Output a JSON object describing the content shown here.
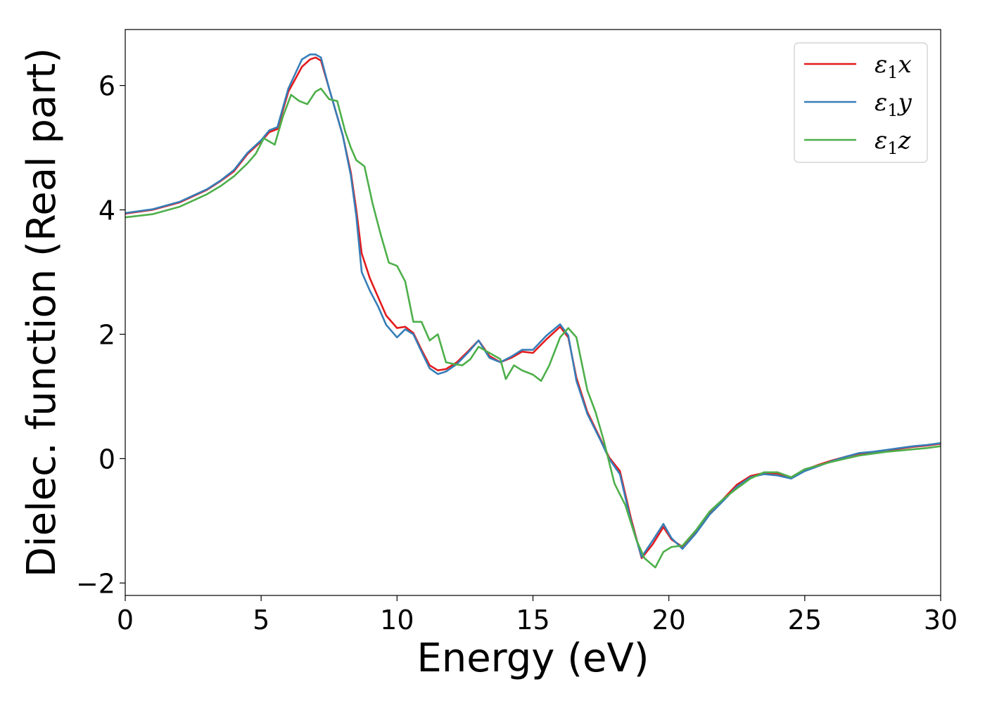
{
  "chart_data": {
    "type": "line",
    "title": "",
    "xlabel": "Energy (eV)",
    "ylabel": "Dielec. function (Real part)",
    "xlim": [
      0,
      30
    ],
    "ylim": [
      -2.2,
      6.9
    ],
    "xticks": [
      0,
      5,
      10,
      15,
      20,
      25,
      30
    ],
    "xtick_labels": [
      "0",
      "5",
      "10",
      "15",
      "20",
      "25",
      "30"
    ],
    "yticks": [
      -2,
      0,
      2,
      4,
      6
    ],
    "ytick_labels": [
      "−2",
      "0",
      "2",
      "4",
      "6"
    ],
    "grid": false,
    "legend_position": "top-right",
    "series": [
      {
        "name": "ε1x",
        "legend_base": "ε",
        "legend_sub": "1",
        "legend_tail": "x",
        "color": "#e41a1c",
        "x": [
          0,
          1,
          2,
          3,
          3.5,
          4,
          4.5,
          5,
          5.3,
          5.6,
          6,
          6.5,
          6.8,
          7.0,
          7.2,
          7.5,
          8.0,
          8.3,
          8.5,
          8.7,
          9.0,
          9.3,
          9.6,
          10.0,
          10.3,
          10.6,
          10.9,
          11.2,
          11.5,
          11.8,
          12.2,
          12.6,
          13.0,
          13.4,
          13.8,
          14.2,
          14.6,
          15.0,
          15.5,
          16.0,
          16.3,
          16.6,
          17.0,
          17.5,
          17.8,
          18.2,
          18.6,
          19.0,
          19.4,
          19.8,
          20.1,
          20.5,
          21.0,
          21.5,
          22.0,
          22.5,
          23.0,
          23.5,
          24.0,
          24.5,
          25.0,
          25.5,
          26.0,
          26.5,
          27.0,
          27.5,
          28.0,
          28.5,
          29.0,
          29.5,
          30.0
        ],
        "y": [
          3.94,
          4.0,
          4.12,
          4.32,
          4.46,
          4.62,
          4.9,
          5.1,
          5.25,
          5.3,
          5.9,
          6.3,
          6.42,
          6.45,
          6.4,
          5.95,
          5.2,
          4.6,
          4.0,
          3.3,
          2.9,
          2.6,
          2.3,
          2.1,
          2.12,
          2.02,
          1.75,
          1.5,
          1.42,
          1.44,
          1.55,
          1.72,
          1.9,
          1.65,
          1.55,
          1.62,
          1.72,
          1.7,
          1.92,
          2.12,
          1.95,
          1.3,
          0.75,
          0.3,
          0.02,
          -0.2,
          -0.95,
          -1.6,
          -1.38,
          -1.1,
          -1.3,
          -1.42,
          -1.18,
          -0.88,
          -0.65,
          -0.42,
          -0.28,
          -0.23,
          -0.24,
          -0.3,
          -0.18,
          -0.1,
          -0.03,
          0.03,
          0.08,
          0.1,
          0.12,
          0.16,
          0.19,
          0.21,
          0.24
        ]
      },
      {
        "name": "ε1y",
        "legend_base": "ε",
        "legend_sub": "1",
        "legend_tail": "y",
        "color": "#377eb8",
        "x": [
          0,
          1,
          2,
          3,
          3.5,
          4,
          4.5,
          5,
          5.3,
          5.6,
          6,
          6.5,
          6.8,
          7.0,
          7.2,
          7.5,
          8.0,
          8.3,
          8.5,
          8.7,
          9.0,
          9.3,
          9.6,
          10.0,
          10.3,
          10.6,
          10.9,
          11.2,
          11.5,
          11.8,
          12.2,
          12.6,
          13.0,
          13.4,
          13.8,
          14.2,
          14.6,
          15.0,
          15.5,
          16.0,
          16.3,
          16.6,
          17.0,
          17.5,
          17.8,
          18.2,
          18.6,
          19.0,
          19.4,
          19.8,
          20.1,
          20.5,
          21.0,
          21.5,
          22.0,
          22.5,
          23.0,
          23.5,
          24.0,
          24.5,
          25.0,
          25.5,
          26.0,
          26.5,
          27.0,
          27.5,
          28.0,
          28.5,
          29.0,
          29.5,
          30.0
        ],
        "y": [
          3.95,
          4.01,
          4.13,
          4.33,
          4.47,
          4.64,
          4.92,
          5.12,
          5.28,
          5.33,
          5.95,
          6.42,
          6.5,
          6.5,
          6.45,
          5.95,
          5.2,
          4.55,
          3.9,
          3.0,
          2.7,
          2.45,
          2.15,
          1.95,
          2.08,
          2.0,
          1.72,
          1.45,
          1.36,
          1.4,
          1.52,
          1.7,
          1.9,
          1.62,
          1.55,
          1.64,
          1.75,
          1.75,
          1.98,
          2.16,
          1.98,
          1.25,
          0.72,
          0.28,
          0.0,
          -0.25,
          -1.0,
          -1.58,
          -1.32,
          -1.05,
          -1.28,
          -1.45,
          -1.2,
          -0.9,
          -0.68,
          -0.45,
          -0.3,
          -0.25,
          -0.27,
          -0.32,
          -0.2,
          -0.12,
          -0.04,
          0.03,
          0.09,
          0.11,
          0.14,
          0.17,
          0.2,
          0.22,
          0.25
        ]
      },
      {
        "name": "ε1z",
        "legend_base": "ε",
        "legend_sub": "1",
        "legend_tail": "z",
        "color": "#4daf4a",
        "x": [
          0,
          1,
          2,
          3,
          3.5,
          4,
          4.5,
          4.8,
          5.1,
          5.5,
          5.8,
          6.1,
          6.4,
          6.7,
          7.0,
          7.2,
          7.5,
          7.8,
          8.1,
          8.3,
          8.5,
          8.8,
          9.1,
          9.4,
          9.7,
          10.0,
          10.3,
          10.6,
          10.9,
          11.2,
          11.5,
          11.8,
          12.1,
          12.4,
          12.7,
          13.0,
          13.4,
          13.8,
          14.0,
          14.3,
          14.6,
          15.0,
          15.3,
          15.6,
          16.0,
          16.3,
          16.6,
          17.0,
          17.3,
          17.6,
          18.0,
          18.4,
          18.8,
          19.1,
          19.5,
          19.8,
          20.1,
          20.5,
          21.0,
          21.5,
          22.0,
          22.5,
          23.0,
          23.5,
          24.0,
          24.5,
          25.0,
          25.5,
          26.0,
          26.5,
          27.0,
          27.5,
          28.0,
          28.5,
          29.0,
          29.5,
          30.0
        ],
        "y": [
          3.88,
          3.93,
          4.05,
          4.25,
          4.38,
          4.54,
          4.75,
          4.9,
          5.15,
          5.05,
          5.5,
          5.85,
          5.75,
          5.7,
          5.9,
          5.95,
          5.78,
          5.75,
          5.25,
          5.0,
          4.8,
          4.7,
          4.1,
          3.6,
          3.15,
          3.1,
          2.85,
          2.2,
          2.2,
          1.9,
          2.0,
          1.55,
          1.52,
          1.5,
          1.6,
          1.8,
          1.7,
          1.6,
          1.28,
          1.5,
          1.42,
          1.35,
          1.25,
          1.5,
          1.95,
          2.1,
          1.95,
          1.1,
          0.75,
          0.3,
          -0.4,
          -0.75,
          -1.3,
          -1.6,
          -1.75,
          -1.5,
          -1.42,
          -1.4,
          -1.15,
          -0.85,
          -0.65,
          -0.48,
          -0.32,
          -0.22,
          -0.22,
          -0.3,
          -0.17,
          -0.11,
          -0.05,
          0.0,
          0.05,
          0.08,
          0.11,
          0.13,
          0.15,
          0.17,
          0.2
        ]
      }
    ]
  }
}
